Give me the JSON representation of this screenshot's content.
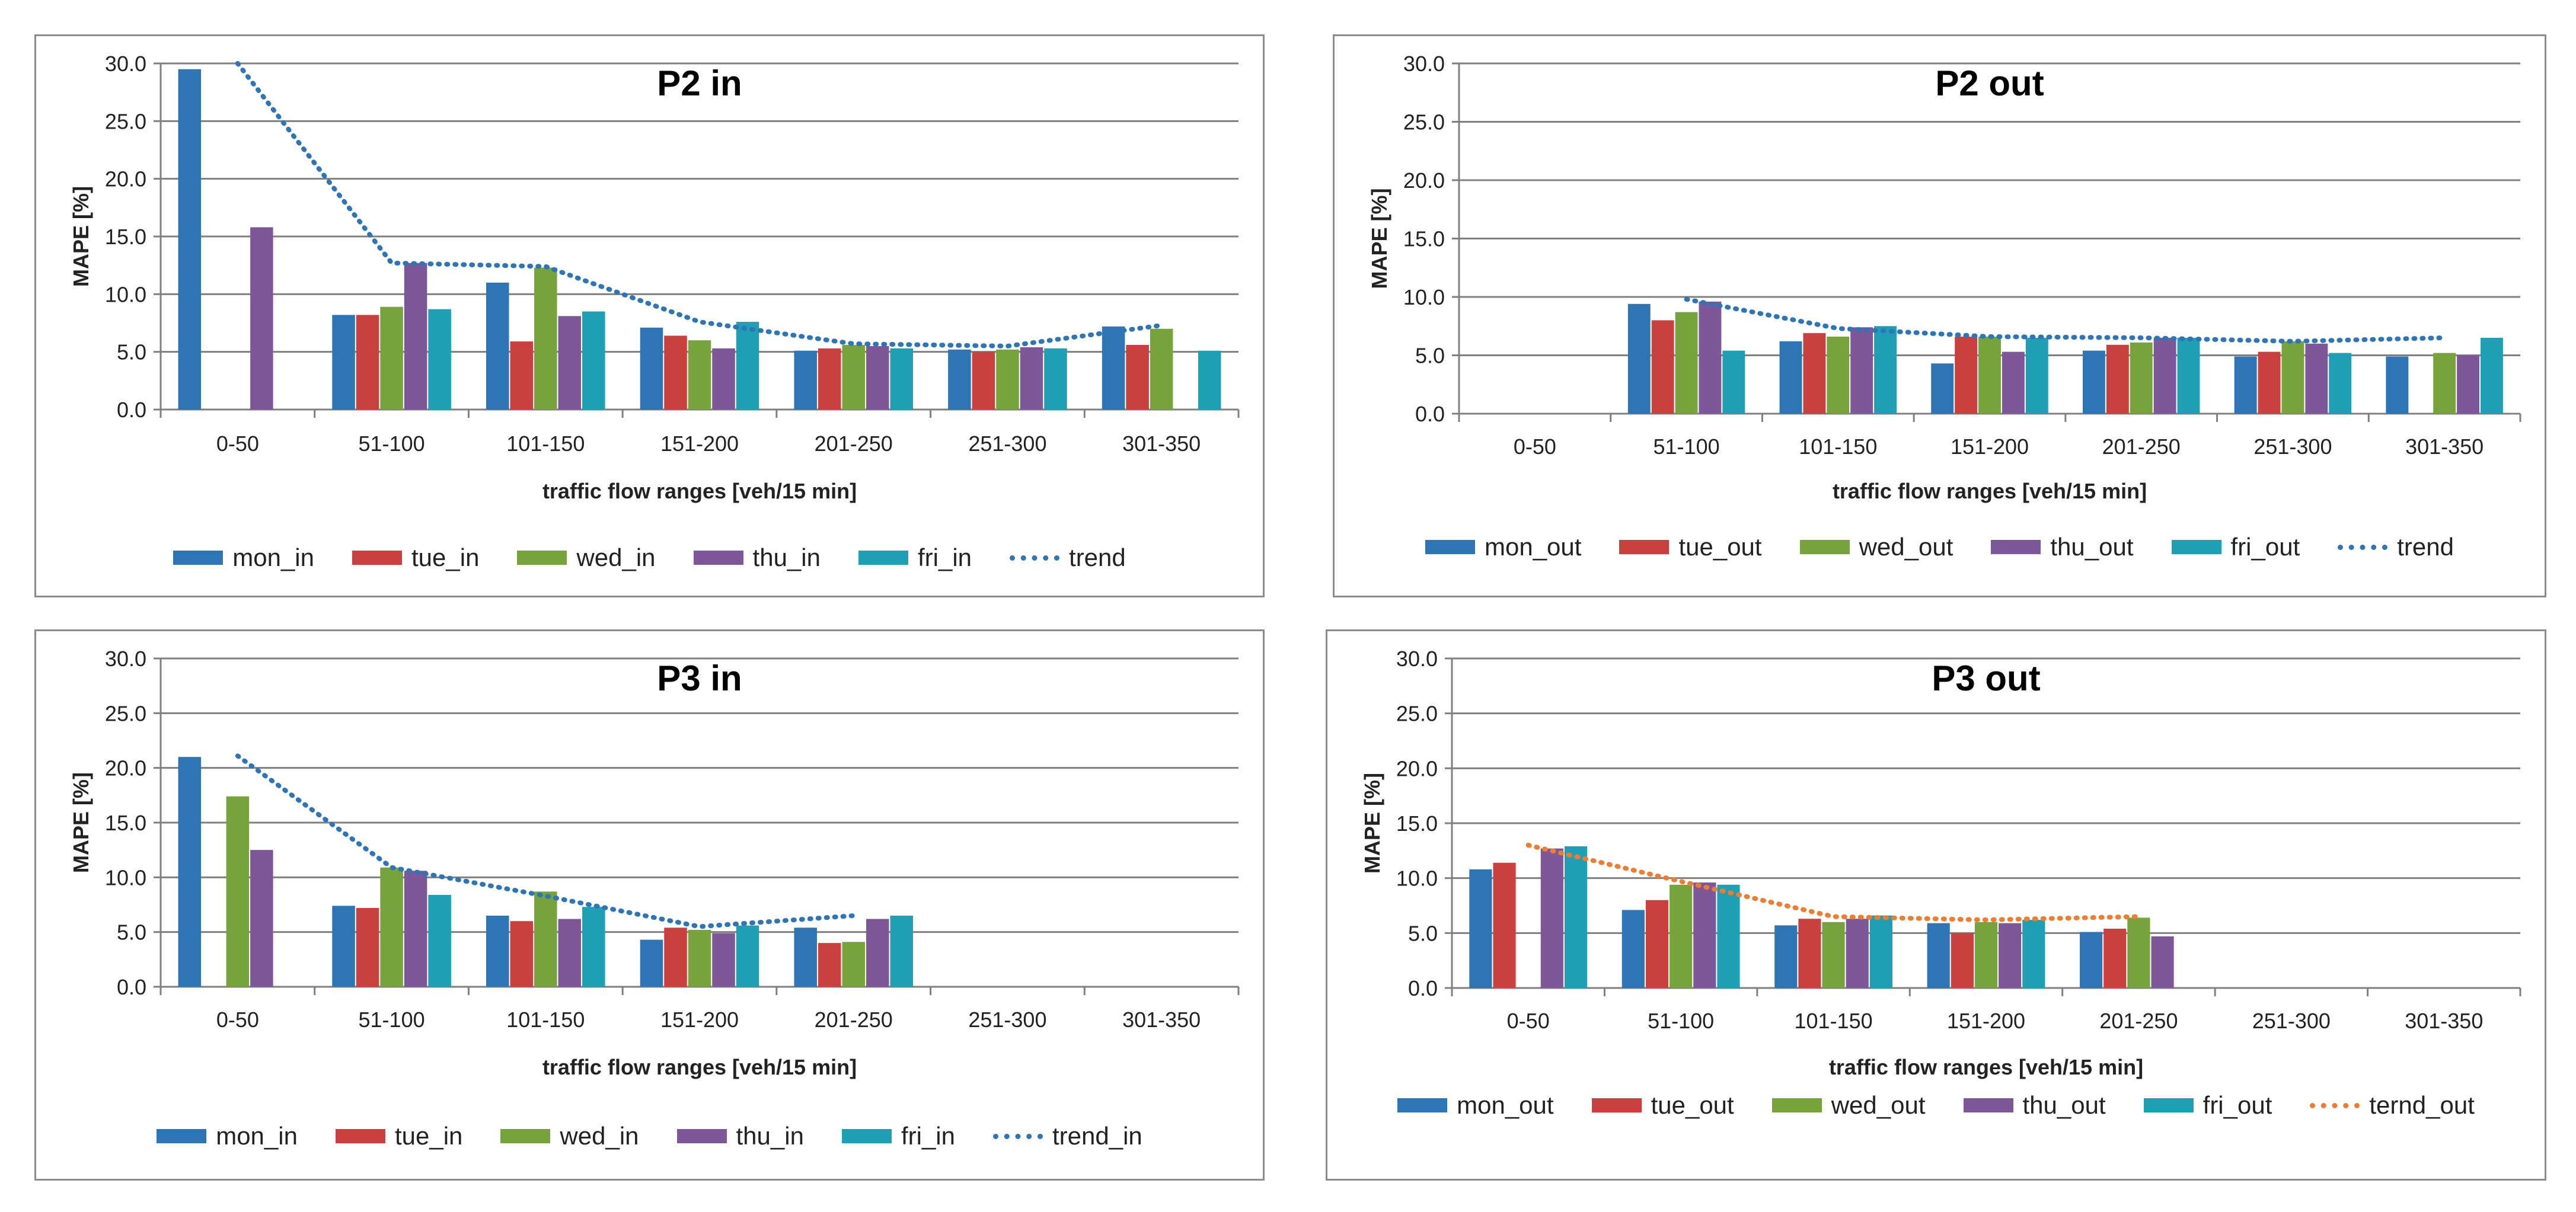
{
  "colors": {
    "mon": "#2e75b6",
    "tue": "#c9403f",
    "wed": "#77a33d",
    "thu": "#7e579a",
    "fri": "#1f9fb4",
    "trend_blue": "#2e75b6",
    "trend_orange": "#ed7d31",
    "grid": "#7f7f7f"
  },
  "chart_data": [
    {
      "id": "p2_in",
      "type": "bar",
      "title": "P2 in",
      "xlabel": "traffic flow ranges [veh/15 min]",
      "ylabel": "MAPE [%]",
      "ylim": [
        0,
        30
      ],
      "yticks": [
        "0.0",
        "5.0",
        "10.0",
        "15.0",
        "20.0",
        "25.0",
        "30.0"
      ],
      "categories": [
        "0-50",
        "51-100",
        "101-150",
        "151-200",
        "201-250",
        "251-300",
        "301-350"
      ],
      "series": [
        {
          "name": "mon_in",
          "color_key": "mon",
          "values": [
            29.5,
            8.2,
            11.0,
            7.1,
            5.1,
            5.2,
            7.2
          ]
        },
        {
          "name": "tue_in",
          "color_key": "tue",
          "values": [
            null,
            8.2,
            5.9,
            6.4,
            5.3,
            5.0,
            5.6
          ]
        },
        {
          "name": "wed_in",
          "color_key": "wed",
          "values": [
            null,
            8.9,
            12.3,
            6.0,
            5.6,
            5.2,
            7.0
          ]
        },
        {
          "name": "thu_in",
          "color_key": "thu",
          "values": [
            15.8,
            12.7,
            8.1,
            5.3,
            5.5,
            5.4,
            null
          ]
        },
        {
          "name": "fri_in",
          "color_key": "fri",
          "values": [
            null,
            8.7,
            8.5,
            7.6,
            5.3,
            5.3,
            5.1
          ]
        }
      ],
      "trend": {
        "name": "trend",
        "color_key": "trend_blue",
        "values": [
          30.0,
          12.7,
          12.4,
          7.6,
          5.7,
          5.5,
          7.3
        ]
      },
      "legend_position": "bottom"
    },
    {
      "id": "p2_out",
      "type": "bar",
      "title": "P2 out",
      "xlabel": "traffic flow ranges [veh/15 min]",
      "ylabel": "MAPE [%]",
      "ylim": [
        0,
        30
      ],
      "yticks": [
        "0.0",
        "5.0",
        "10.0",
        "15.0",
        "20.0",
        "25.0",
        "30.0"
      ],
      "categories": [
        "0-50",
        "51-100",
        "101-150",
        "151-200",
        "201-250",
        "251-300",
        "301-350"
      ],
      "series": [
        {
          "name": "mon_out",
          "color_key": "mon",
          "values": [
            null,
            9.4,
            6.2,
            4.3,
            5.4,
            4.9,
            4.9
          ]
        },
        {
          "name": "tue_out",
          "color_key": "tue",
          "values": [
            null,
            8.0,
            6.9,
            6.6,
            5.9,
            5.3,
            null
          ]
        },
        {
          "name": "wed_out",
          "color_key": "wed",
          "values": [
            null,
            8.7,
            6.6,
            6.6,
            6.1,
            6.2,
            5.2
          ]
        },
        {
          "name": "thu_out",
          "color_key": "thu",
          "values": [
            null,
            9.6,
            7.4,
            5.3,
            6.5,
            6.0,
            5.0
          ]
        },
        {
          "name": "fri_out",
          "color_key": "fri",
          "values": [
            null,
            5.4,
            7.5,
            6.5,
            6.5,
            5.2,
            6.5
          ]
        }
      ],
      "trend": {
        "name": "trend",
        "color_key": "trend_blue",
        "values": [
          null,
          9.8,
          7.3,
          6.6,
          6.5,
          6.2,
          6.5
        ]
      },
      "legend_position": "bottom"
    },
    {
      "id": "p3_in",
      "type": "bar",
      "title": "P3 in",
      "xlabel": "traffic flow ranges [veh/15 min]",
      "ylabel": "MAPE [%]",
      "ylim": [
        0,
        30
      ],
      "yticks": [
        "0.0",
        "5.0",
        "10.0",
        "15.0",
        "20.0",
        "25.0",
        "30.0"
      ],
      "categories": [
        "0-50",
        "51-100",
        "101-150",
        "151-200",
        "201-250",
        "251-300",
        "301-350"
      ],
      "series": [
        {
          "name": "mon_in",
          "color_key": "mon",
          "values": [
            21.0,
            7.4,
            6.5,
            4.3,
            5.4,
            null,
            null
          ]
        },
        {
          "name": "tue_in",
          "color_key": "tue",
          "values": [
            null,
            7.2,
            6.0,
            5.4,
            4.0,
            null,
            null
          ]
        },
        {
          "name": "wed_in",
          "color_key": "wed",
          "values": [
            17.4,
            10.9,
            8.7,
            5.2,
            4.1,
            null,
            null
          ]
        },
        {
          "name": "thu_in",
          "color_key": "thu",
          "values": [
            12.5,
            10.6,
            6.2,
            4.9,
            6.2,
            null,
            null
          ]
        },
        {
          "name": "fri_in",
          "color_key": "fri",
          "values": [
            null,
            8.4,
            7.3,
            5.6,
            6.5,
            null,
            null
          ]
        }
      ],
      "trend": {
        "name": "trend_in",
        "color_key": "trend_blue",
        "values": [
          21.1,
          10.9,
          8.3,
          5.5,
          6.5,
          null,
          null
        ]
      },
      "legend_position": "bottom"
    },
    {
      "id": "p3_out",
      "type": "bar",
      "title": "P3 out",
      "xlabel": "traffic flow ranges [veh/15 min]",
      "ylabel": "MAPE [%]",
      "ylim": [
        0,
        30
      ],
      "yticks": [
        "0.0",
        "5.0",
        "10.0",
        "15.0",
        "20.0",
        "25.0",
        "30.0"
      ],
      "categories": [
        "0-50",
        "51-100",
        "101-150",
        "151-200",
        "201-250",
        "251-300",
        "301-350"
      ],
      "series": [
        {
          "name": "mon_out",
          "color_key": "mon",
          "values": [
            10.8,
            7.1,
            5.7,
            5.9,
            5.1,
            null,
            null
          ]
        },
        {
          "name": "tue_out",
          "color_key": "tue",
          "values": [
            11.4,
            8.0,
            6.3,
            5.0,
            5.4,
            null,
            null
          ]
        },
        {
          "name": "wed_out",
          "color_key": "wed",
          "values": [
            null,
            9.4,
            6.0,
            6.0,
            6.4,
            null,
            null
          ]
        },
        {
          "name": "thu_out",
          "color_key": "thu",
          "values": [
            12.7,
            9.6,
            6.3,
            5.9,
            4.7,
            null,
            null
          ]
        },
        {
          "name": "fri_out",
          "color_key": "fri",
          "values": [
            12.9,
            9.4,
            6.6,
            6.2,
            null,
            null,
            null
          ]
        }
      ],
      "trend": {
        "name": "ternd_out",
        "color_key": "trend_orange",
        "values": [
          13.0,
          9.7,
          6.5,
          6.2,
          6.5,
          null,
          null
        ]
      },
      "legend_position": "bottom"
    }
  ]
}
